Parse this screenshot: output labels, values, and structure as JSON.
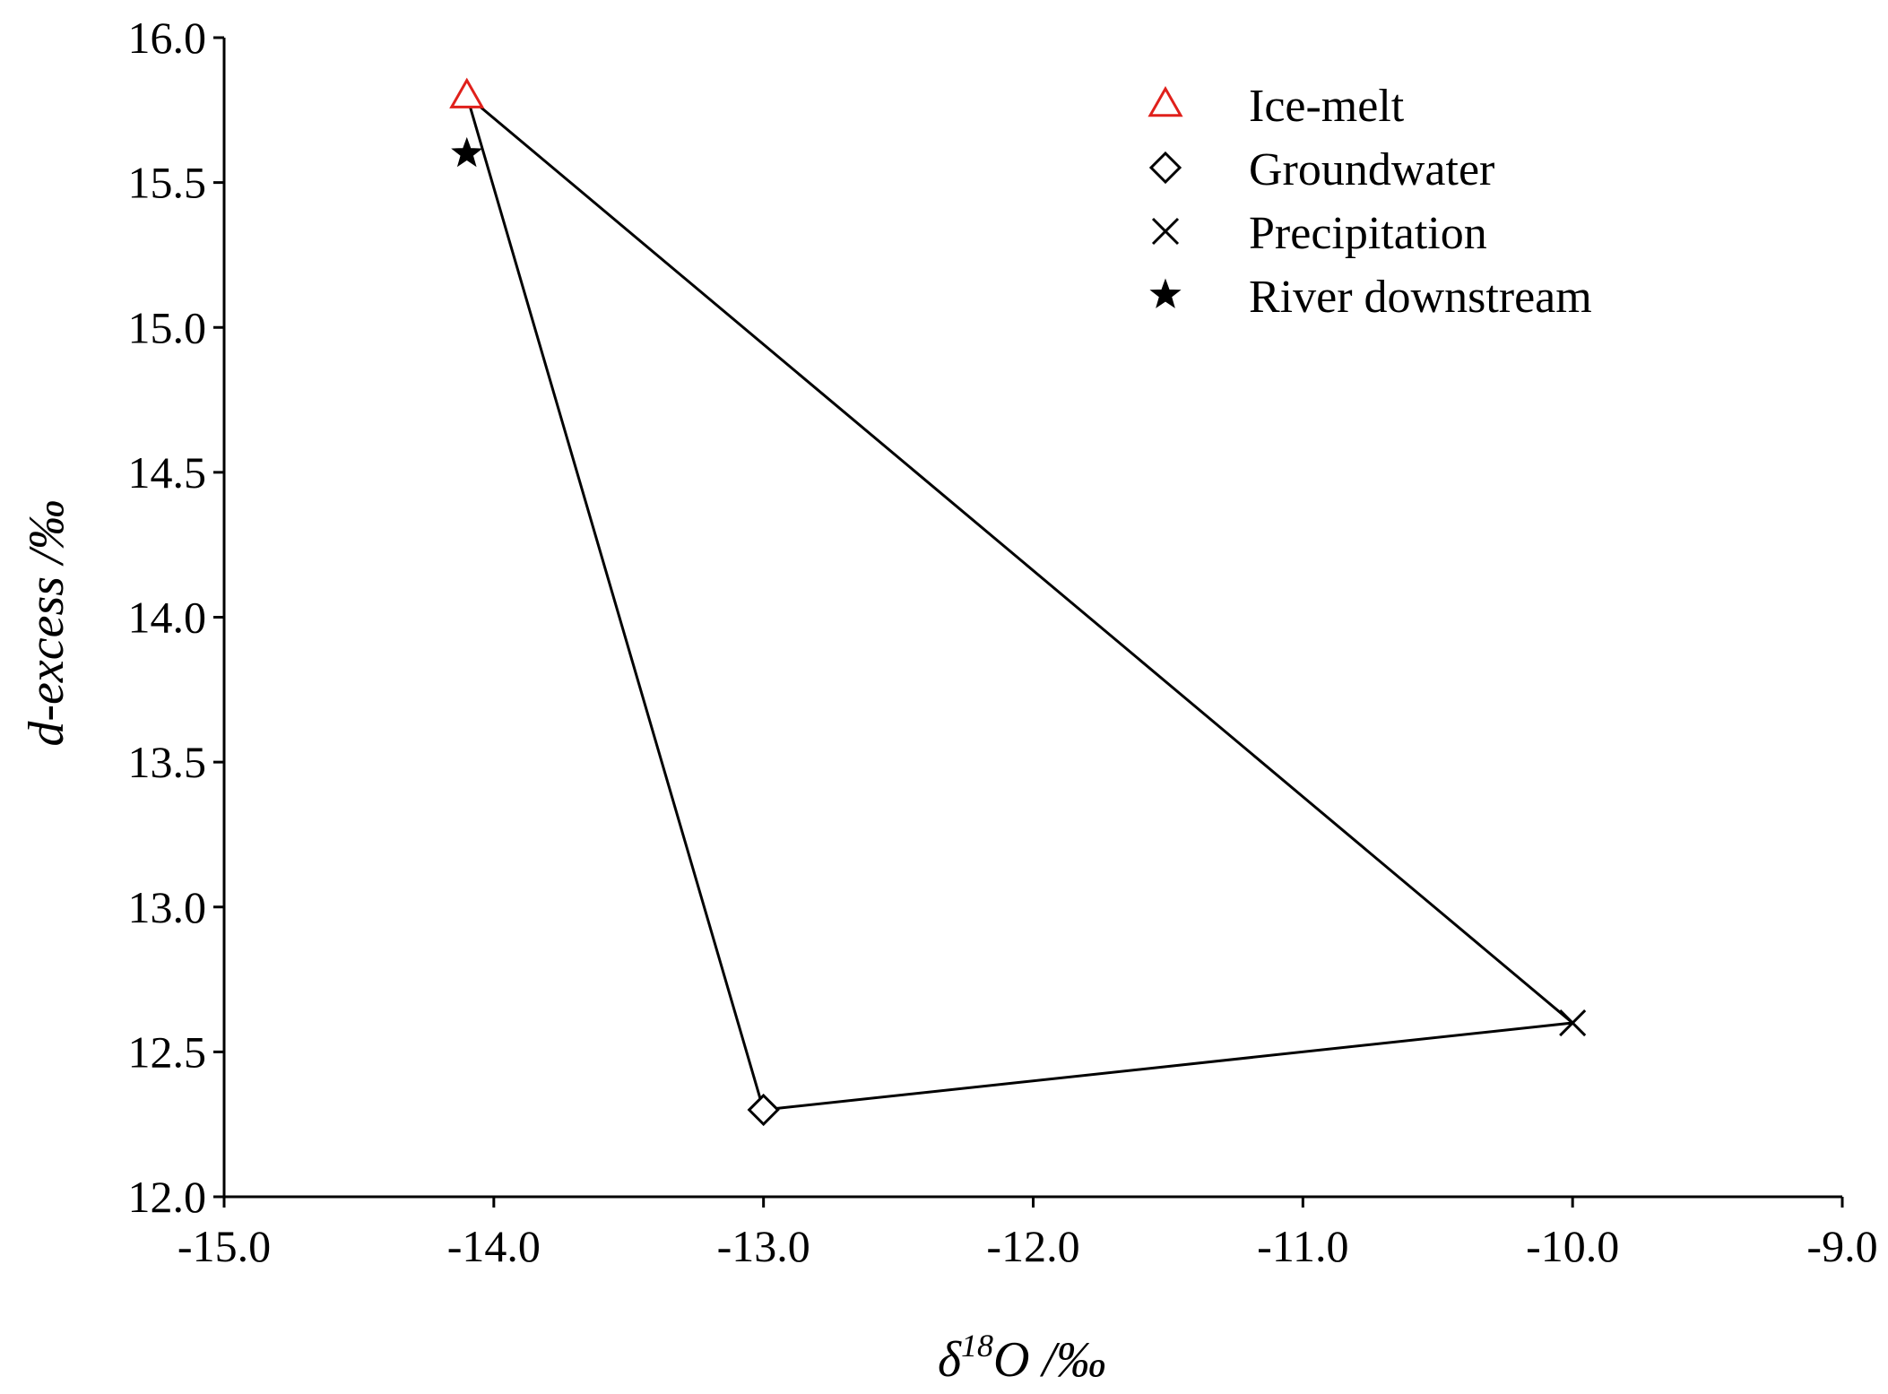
{
  "chart_data": {
    "type": "scatter",
    "title": "",
    "xlabel_delta": "δ",
    "xlabel_superscript": "18",
    "xlabel_rest": "O /‰",
    "ylabel": "d-excess /‰",
    "xlim": [
      -15.0,
      -9.0
    ],
    "ylim": [
      12.0,
      16.0
    ],
    "x_ticks": [
      "-15.0",
      "-14.0",
      "-13.0",
      "-12.0",
      "-11.0",
      "-10.0",
      "-9.0"
    ],
    "y_ticks": [
      "12.0",
      "12.5",
      "13.0",
      "13.5",
      "14.0",
      "14.5",
      "15.0",
      "15.5",
      "16.0"
    ],
    "grid": false,
    "legend_position": "top-right",
    "series": [
      {
        "name": "Ice-melt",
        "marker": "triangle-open",
        "color": "#e0201b",
        "x": -14.1,
        "y": 15.8
      },
      {
        "name": "Groundwater",
        "marker": "diamond-open",
        "color": "#000000",
        "x": -13.0,
        "y": 12.3
      },
      {
        "name": "Precipitation",
        "marker": "x",
        "color": "#000000",
        "x": -10.0,
        "y": 12.6
      },
      {
        "name": "River downstream",
        "marker": "star",
        "color": "#000000",
        "x": -14.1,
        "y": 15.6
      }
    ],
    "mixing_triangle": [
      "Ice-melt",
      "Groundwater",
      "Precipitation"
    ]
  }
}
